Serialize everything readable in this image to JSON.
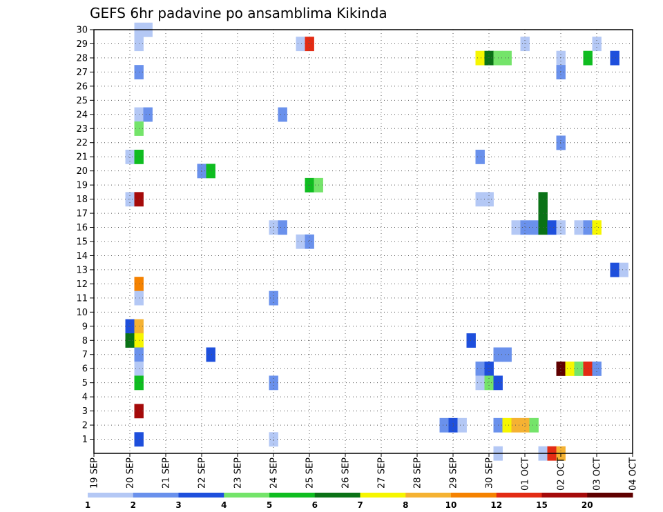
{
  "chart_data": {
    "type": "heatmap",
    "title": "GEFS 6hr padavine po ansamblima Kikinda",
    "xlabel": "",
    "ylabel": "",
    "x_tick_labels": [
      "19 SEP",
      "20 SEP",
      "21 SEP",
      "22 SEP",
      "23 SEP",
      "24 SEP",
      "25 SEP",
      "26 SEP",
      "27 SEP",
      "28 SEP",
      "29 SEP",
      "30 SEP",
      "01 OCT",
      "02 OCT",
      "03 OCT",
      "04 OCT"
    ],
    "x_range_days": [
      19,
      34
    ],
    "y_tick_labels": [
      "1",
      "2",
      "3",
      "4",
      "5",
      "6",
      "7",
      "8",
      "9",
      "10",
      "11",
      "12",
      "13",
      "14",
      "15",
      "16",
      "17",
      "18",
      "19",
      "20",
      "21",
      "22",
      "23",
      "24",
      "25",
      "26",
      "27",
      "28",
      "29",
      "30"
    ],
    "y_range": [
      0,
      30
    ],
    "time_step_hours": 6,
    "grid": true,
    "colorbar": {
      "levels": [
        "1",
        "2",
        "3",
        "4",
        "5",
        "6",
        "7",
        "8",
        "10",
        "12",
        "15",
        "20"
      ],
      "colors": [
        "#b4c8f5",
        "#6a91ec",
        "#1e4fdc",
        "#74e46a",
        "#0fbd20",
        "#0a7216",
        "#f6f600",
        "#f5b232",
        "#f58200",
        "#e32b14",
        "#a50a0a",
        "#5f0000"
      ]
    },
    "cells": [
      {
        "day": 20.25,
        "member": 30,
        "class": 0
      },
      {
        "day": 20.5,
        "member": 30,
        "class": 0
      },
      {
        "day": 20.25,
        "member": 29,
        "class": 0
      },
      {
        "day": 20.25,
        "member": 27,
        "class": 1
      },
      {
        "day": 20.25,
        "member": 24,
        "class": 0
      },
      {
        "day": 20.5,
        "member": 24,
        "class": 1
      },
      {
        "day": 20.25,
        "member": 23,
        "class": 3
      },
      {
        "day": 20.0,
        "member": 21,
        "class": 0
      },
      {
        "day": 20.25,
        "member": 21,
        "class": 4
      },
      {
        "day": 20.0,
        "member": 18,
        "class": 0
      },
      {
        "day": 20.25,
        "member": 18,
        "class": 10
      },
      {
        "day": 20.25,
        "member": 12,
        "class": 8
      },
      {
        "day": 20.25,
        "member": 11,
        "class": 0
      },
      {
        "day": 20.0,
        "member": 9,
        "class": 2
      },
      {
        "day": 20.25,
        "member": 9,
        "class": 7
      },
      {
        "day": 20.0,
        "member": 8,
        "class": 5
      },
      {
        "day": 20.25,
        "member": 8,
        "class": 6
      },
      {
        "day": 20.25,
        "member": 7,
        "class": 1
      },
      {
        "day": 20.25,
        "member": 6,
        "class": 0
      },
      {
        "day": 20.25,
        "member": 5,
        "class": 4
      },
      {
        "day": 20.25,
        "member": 3,
        "class": 10
      },
      {
        "day": 20.25,
        "member": 1,
        "class": 2
      },
      {
        "day": 22.0,
        "member": 20,
        "class": 1
      },
      {
        "day": 22.25,
        "member": 20,
        "class": 4
      },
      {
        "day": 22.25,
        "member": 7,
        "class": 2
      },
      {
        "day": 24.0,
        "member": 16,
        "class": 0
      },
      {
        "day": 24.25,
        "member": 16,
        "class": 1
      },
      {
        "day": 24.0,
        "member": 11,
        "class": 1
      },
      {
        "day": 24.0,
        "member": 5,
        "class": 1
      },
      {
        "day": 24.0,
        "member": 1,
        "class": 0
      },
      {
        "day": 24.25,
        "member": 24,
        "class": 1
      },
      {
        "day": 24.75,
        "member": 29,
        "class": 0
      },
      {
        "day": 25.0,
        "member": 29,
        "class": 9
      },
      {
        "day": 25.0,
        "member": 19,
        "class": 4
      },
      {
        "day": 25.25,
        "member": 19,
        "class": 3
      },
      {
        "day": 24.75,
        "member": 15,
        "class": 0
      },
      {
        "day": 25.0,
        "member": 15,
        "class": 1
      },
      {
        "day": 28.75,
        "member": 2,
        "class": 1
      },
      {
        "day": 29.0,
        "member": 2,
        "class": 2
      },
      {
        "day": 29.25,
        "member": 2,
        "class": 0
      },
      {
        "day": 29.5,
        "member": 8,
        "class": 2
      },
      {
        "day": 29.75,
        "member": 21,
        "class": 1
      },
      {
        "day": 29.75,
        "member": 18,
        "class": 0
      },
      {
        "day": 30.0,
        "member": 18,
        "class": 0
      },
      {
        "day": 29.75,
        "member": 6,
        "class": 1
      },
      {
        "day": 30.0,
        "member": 6,
        "class": 2
      },
      {
        "day": 29.75,
        "member": 5,
        "class": 0
      },
      {
        "day": 30.0,
        "member": 5,
        "class": 3
      },
      {
        "day": 30.25,
        "member": 5,
        "class": 2
      },
      {
        "day": 29.75,
        "member": 28,
        "class": 6
      },
      {
        "day": 30.0,
        "member": 28,
        "class": 5
      },
      {
        "day": 30.25,
        "member": 28,
        "class": 3
      },
      {
        "day": 30.5,
        "member": 28,
        "class": 3
      },
      {
        "day": 30.25,
        "member": 7,
        "class": 1
      },
      {
        "day": 30.5,
        "member": 7,
        "class": 1
      },
      {
        "day": 30.25,
        "member": 2,
        "class": 1
      },
      {
        "day": 30.5,
        "member": 2,
        "class": 6
      },
      {
        "day": 30.75,
        "member": 2,
        "class": 7
      },
      {
        "day": 31.0,
        "member": 2,
        "class": 7
      },
      {
        "day": 31.25,
        "member": 2,
        "class": 3
      },
      {
        "day": 30.25,
        "member": 0,
        "class": 0
      },
      {
        "day": 31.0,
        "member": 29,
        "class": 0
      },
      {
        "day": 30.75,
        "member": 16,
        "class": 0
      },
      {
        "day": 31.0,
        "member": 16,
        "class": 1
      },
      {
        "day": 31.25,
        "member": 16,
        "class": 1
      },
      {
        "day": 31.5,
        "member": 16,
        "class": 5
      },
      {
        "day": 31.5,
        "member": 17,
        "class": 5
      },
      {
        "day": 31.5,
        "member": 18,
        "class": 5
      },
      {
        "day": 31.75,
        "member": 16,
        "class": 2
      },
      {
        "day": 32.0,
        "member": 16,
        "class": 0
      },
      {
        "day": 32.0,
        "member": 28,
        "class": 0
      },
      {
        "day": 32.0,
        "member": 27,
        "class": 1
      },
      {
        "day": 32.0,
        "member": 22,
        "class": 1
      },
      {
        "day": 32.0,
        "member": 6,
        "class": 11
      },
      {
        "day": 32.25,
        "member": 6,
        "class": 6
      },
      {
        "day": 32.5,
        "member": 6,
        "class": 3
      },
      {
        "day": 32.75,
        "member": 6,
        "class": 9
      },
      {
        "day": 33.0,
        "member": 6,
        "class": 1
      },
      {
        "day": 31.5,
        "member": 0,
        "class": 0
      },
      {
        "day": 31.75,
        "member": 0,
        "class": 9
      },
      {
        "day": 32.0,
        "member": 0,
        "class": 7
      },
      {
        "day": 32.5,
        "member": 16,
        "class": 0
      },
      {
        "day": 32.75,
        "member": 16,
        "class": 1
      },
      {
        "day": 33.0,
        "member": 16,
        "class": 6
      },
      {
        "day": 32.75,
        "member": 28,
        "class": 4
      },
      {
        "day": 33.0,
        "member": 29,
        "class": 0
      },
      {
        "day": 33.5,
        "member": 28,
        "class": 2
      },
      {
        "day": 33.5,
        "member": 13,
        "class": 2
      },
      {
        "day": 33.75,
        "member": 13,
        "class": 0
      }
    ]
  }
}
